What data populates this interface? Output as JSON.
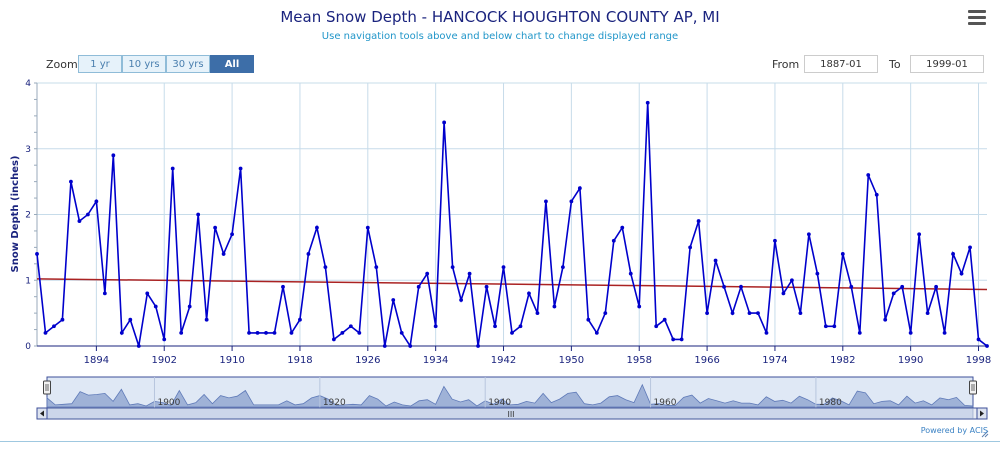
{
  "header": {
    "title": "Mean Snow Depth - HANCOCK HOUGHTON COUNTY AP, MI",
    "subtitle": "Use navigation tools above and below chart to change displayed range"
  },
  "zoom": {
    "label": "Zoom",
    "buttons": [
      "1 yr",
      "10 yrs",
      "30 yrs",
      "All"
    ],
    "active": "All"
  },
  "range": {
    "from_label": "From",
    "from_value": "1887-01",
    "to_label": "To",
    "to_value": "1999-01"
  },
  "menu_icon": "hamburger-menu-icon",
  "chart_data": {
    "type": "line",
    "title": "Mean Snow Depth - HANCOCK HOUGHTON COUNTY AP, MI",
    "ylabel": "Snow Depth (inches)",
    "xlabel": "",
    "xlim": [
      1887,
      1999
    ],
    "ylim": [
      0,
      4
    ],
    "x_ticks": [
      1894,
      1902,
      1910,
      1918,
      1926,
      1934,
      1942,
      1950,
      1958,
      1966,
      1974,
      1982,
      1990,
      1998
    ],
    "y_ticks": [
      0,
      1,
      2,
      3,
      4
    ],
    "grid": true,
    "legend": "none",
    "series": [
      {
        "color": "#0000cc",
        "x": [
          1887,
          1888,
          1889,
          1890,
          1891,
          1892,
          1893,
          1894,
          1895,
          1896,
          1897,
          1898,
          1899,
          1900,
          1901,
          1902,
          1903,
          1904,
          1905,
          1906,
          1907,
          1908,
          1909,
          1910,
          1911,
          1912,
          1913,
          1914,
          1915,
          1916,
          1917,
          1918,
          1919,
          1920,
          1921,
          1922,
          1923,
          1924,
          1925,
          1926,
          1927,
          1928,
          1929,
          1930,
          1931,
          1932,
          1933,
          1934,
          1935,
          1936,
          1937,
          1938,
          1939,
          1940,
          1941,
          1942,
          1943,
          1944,
          1945,
          1946,
          1947,
          1948,
          1949,
          1950,
          1951,
          1952,
          1953,
          1954,
          1955,
          1956,
          1957,
          1958,
          1959,
          1960,
          1961,
          1962,
          1963,
          1964,
          1965,
          1966,
          1967,
          1968,
          1969,
          1970,
          1971,
          1972,
          1973,
          1974,
          1975,
          1976,
          1977,
          1978,
          1979,
          1980,
          1981,
          1982,
          1983,
          1984,
          1985,
          1986,
          1987,
          1988,
          1989,
          1990,
          1991,
          1992,
          1993,
          1994,
          1995,
          1996,
          1997,
          1998,
          1999
        ],
        "y": [
          1.4,
          0.2,
          0.3,
          0.4,
          2.5,
          1.9,
          2.0,
          2.2,
          0.8,
          2.9,
          0.2,
          0.4,
          0.0,
          0.8,
          0.6,
          0.1,
          2.7,
          0.2,
          0.6,
          2.0,
          0.4,
          1.8,
          1.4,
          1.7,
          2.7,
          0.2,
          0.2,
          0.2,
          0.2,
          0.9,
          0.2,
          0.4,
          1.4,
          1.8,
          1.2,
          0.1,
          0.2,
          0.3,
          0.2,
          1.8,
          1.2,
          0.0,
          0.7,
          0.2,
          0.0,
          0.9,
          1.1,
          0.3,
          3.4,
          1.2,
          0.7,
          1.1,
          0.0,
          0.9,
          0.3,
          1.2,
          0.2,
          0.3,
          0.8,
          0.5,
          2.2,
          0.6,
          1.2,
          2.2,
          2.4,
          0.4,
          0.2,
          0.5,
          1.6,
          1.8,
          1.1,
          0.6,
          3.7,
          0.3,
          0.4,
          0.1,
          0.1,
          1.5,
          1.9,
          0.5,
          1.3,
          0.9,
          0.5,
          0.9,
          0.5,
          0.5,
          0.2,
          1.6,
          0.8,
          1.0,
          0.5,
          1.7,
          1.1,
          0.3,
          0.3,
          1.4,
          0.9,
          0.2,
          2.6,
          2.3,
          0.4,
          0.8,
          0.9,
          0.2,
          1.7,
          0.5,
          0.9,
          0.2,
          1.4,
          1.1,
          1.5,
          0.1,
          0.0
        ]
      }
    ],
    "trend": {
      "color": "#aa2222",
      "x": [
        1887,
        1999
      ],
      "y": [
        1.02,
        0.86
      ]
    },
    "navigator": {
      "x_ticks": [
        1900,
        1920,
        1940,
        1960,
        1980
      ],
      "scrollbar_grip": "III"
    }
  },
  "footer": {
    "powered_by": "Powered by ACIS"
  }
}
